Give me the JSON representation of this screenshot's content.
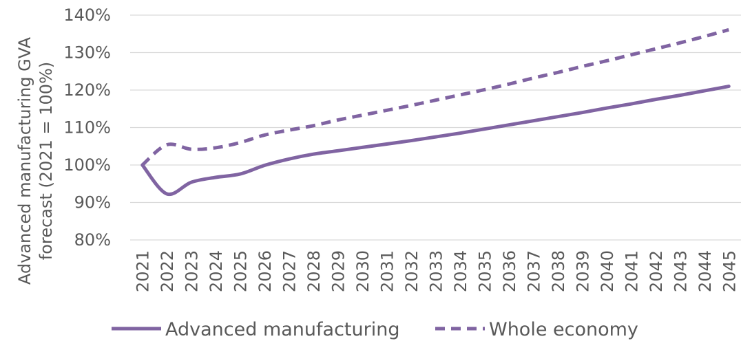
{
  "chart_data": {
    "type": "line",
    "ylabel_line1": "Advanced manufacturing GVA",
    "ylabel_line2": "forecast (2021 = 100%)",
    "ylim": [
      80,
      140
    ],
    "yticks": [
      "80%",
      "90%",
      "100%",
      "110%",
      "120%",
      "130%",
      "140%"
    ],
    "y_tick_values": [
      80,
      90,
      100,
      110,
      120,
      130,
      140
    ],
    "grid": true,
    "legend_position": "bottom",
    "x": [
      "2021",
      "2022",
      "2023",
      "2024",
      "2025",
      "2026",
      "2027",
      "2028",
      "2029",
      "2030",
      "2031",
      "2032",
      "2033",
      "2034",
      "2035",
      "2036",
      "2037",
      "2038",
      "2039",
      "2040",
      "2041",
      "2042",
      "2043",
      "2044",
      "2045"
    ],
    "series": [
      {
        "name": "Advanced manufacturing",
        "style": "solid",
        "color": "#8064a2",
        "values": [
          100.0,
          92.3,
          95.4,
          96.7,
          97.6,
          99.9,
          101.6,
          102.9,
          103.8,
          104.7,
          105.6,
          106.5,
          107.5,
          108.5,
          109.6,
          110.7,
          111.8,
          112.9,
          114.0,
          115.2,
          116.3,
          117.5,
          118.6,
          119.8,
          121.0
        ]
      },
      {
        "name": "Whole economy",
        "style": "dashed",
        "color": "#8064a2",
        "values": [
          100.0,
          105.4,
          104.2,
          104.6,
          106.0,
          108.0,
          109.3,
          110.5,
          112.0,
          113.3,
          114.6,
          115.9,
          117.3,
          118.7,
          120.1,
          121.6,
          123.2,
          124.7,
          126.3,
          127.8,
          129.4,
          131.0,
          132.6,
          134.3,
          136.1
        ]
      }
    ]
  }
}
